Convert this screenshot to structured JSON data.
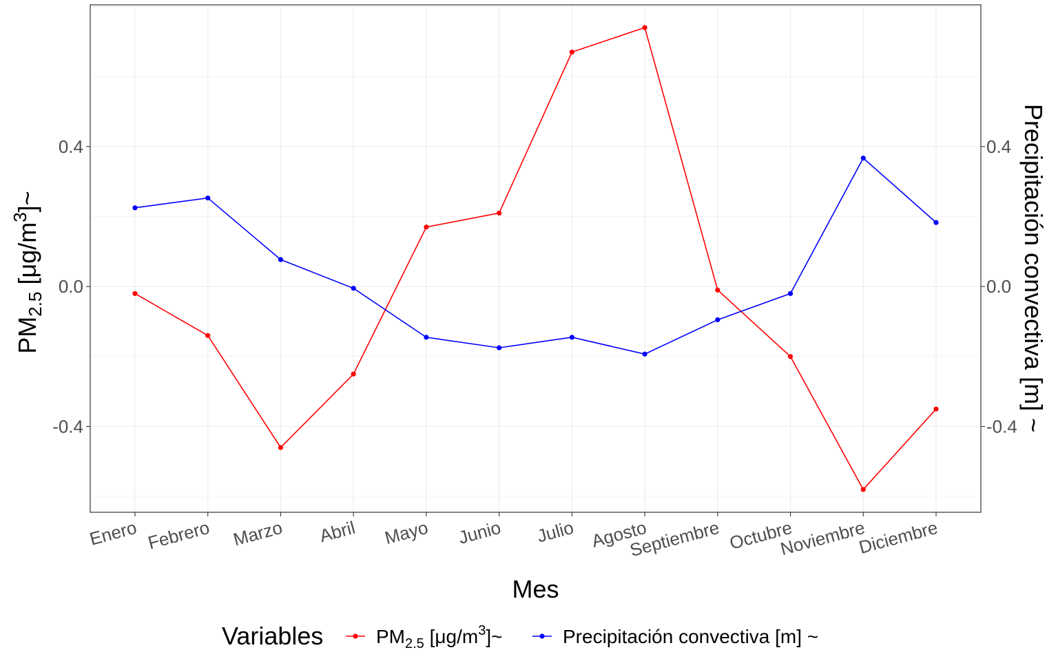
{
  "chart_data": {
    "type": "line",
    "categories": [
      "Enero",
      "Febrero",
      "Marzo",
      "Abril",
      "Mayo",
      "Junio",
      "Julio",
      "Agosto",
      "Septiembre",
      "Octubre",
      "Noviembre",
      "Diciembre"
    ],
    "series": [
      {
        "name_parts": {
          "base": "PM",
          "sub": "2.5",
          "unit_pre": " [μg/m",
          "sup": "3",
          "unit_post": "]~"
        },
        "color": "#ff0000",
        "values": [
          -0.02,
          -0.14,
          -0.46,
          -0.25,
          0.17,
          0.21,
          0.67,
          0.74,
          -0.01,
          -0.2,
          -0.58,
          -0.35
        ]
      },
      {
        "name": "Precipitación convectiva [m] ~",
        "color": "#0000ff",
        "values": [
          0.225,
          0.253,
          0.077,
          -0.005,
          -0.145,
          -0.175,
          -0.145,
          -0.193,
          -0.095,
          -0.02,
          0.367,
          0.183
        ]
      }
    ],
    "ylim": [
      -0.645,
      0.805
    ],
    "yticks": [
      -0.4,
      0.0,
      0.4
    ],
    "ytick_labels": [
      "-0.4",
      "0.0",
      "0.4"
    ],
    "xlabel": "Mes",
    "ylabel_left": {
      "base": "PM",
      "sub": "2.5",
      "unit_pre": " [μg/m",
      "sup": "3",
      "unit_post": "]~"
    },
    "ylabel_right": "Precipitación convectiva [m] ~",
    "legend_title": "Variables",
    "legend_position": "bottom",
    "grid": true
  }
}
